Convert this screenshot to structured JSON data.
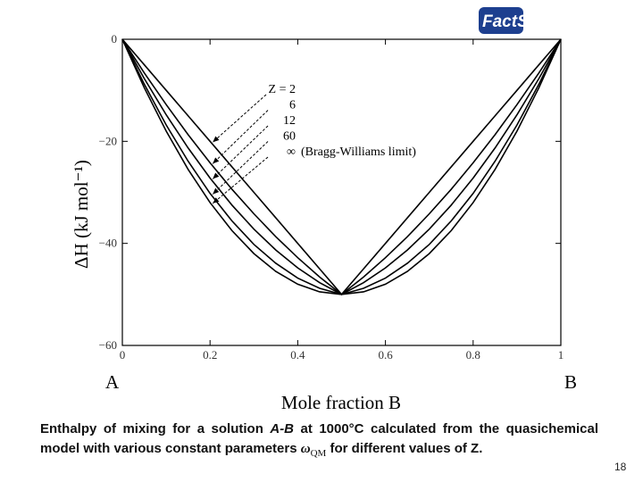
{
  "logo": "FactSage",
  "chart_data": {
    "type": "line",
    "y_label": "ΔH (kJ mol⁻¹)",
    "x_label": "Mole fraction B",
    "left_label": "A",
    "right_label": "B",
    "x": [
      0,
      0.05,
      0.1,
      0.15,
      0.2,
      0.25,
      0.3,
      0.35,
      0.4,
      0.45,
      0.5,
      0.55,
      0.6,
      0.65,
      0.7,
      0.75,
      0.8,
      0.85,
      0.9,
      0.95,
      1
    ],
    "series": [
      {
        "name": "Z = 2",
        "color": "#000000",
        "values": [
          0,
          -5,
          -10,
          -15,
          -20,
          -25,
          -30,
          -35,
          -40,
          -45,
          -50,
          -45,
          -40,
          -35,
          -30,
          -25,
          -20,
          -15,
          -10,
          -5,
          0
        ]
      },
      {
        "name": "6",
        "color": "#000000",
        "values": [
          0,
          -6.6,
          -12.8,
          -18.7,
          -24.2,
          -29.4,
          -34.2,
          -38.7,
          -42.8,
          -46.6,
          -50,
          -46.6,
          -42.8,
          -38.7,
          -34.2,
          -29.4,
          -24.2,
          -18.7,
          -12.8,
          -6.6,
          0
        ]
      },
      {
        "name": "12",
        "color": "#000000",
        "values": [
          0,
          -7.7,
          -14.8,
          -21.3,
          -27.2,
          -32.5,
          -37.2,
          -41.3,
          -44.8,
          -47.7,
          -50,
          -47.7,
          -44.8,
          -41.3,
          -37.2,
          -32.5,
          -27.2,
          -21.3,
          -14.8,
          -7.7,
          0
        ]
      },
      {
        "name": "60",
        "color": "#000000",
        "values": [
          0,
          -8.8,
          -16.8,
          -23.9,
          -30.2,
          -35.6,
          -40.2,
          -43.9,
          -46.8,
          -48.8,
          -50,
          -48.8,
          -46.8,
          -43.9,
          -40.2,
          -35.6,
          -30.2,
          -23.9,
          -16.8,
          -8.8,
          0
        ]
      },
      {
        "name": "∞",
        "color": "#000000",
        "values": [
          0,
          -9.5,
          -18,
          -25.5,
          -32,
          -37.5,
          -42,
          -45.5,
          -48,
          -49.5,
          -50,
          -49.5,
          -48,
          -45.5,
          -42,
          -37.5,
          -32,
          -25.5,
          -18,
          -9.5,
          0
        ]
      }
    ],
    "annotation": "(Bragg-Williams limit)",
    "xlim": [
      0,
      1
    ],
    "xticks": [
      0,
      0.2,
      0.4,
      0.6,
      0.8,
      1
    ],
    "ylim": [
      -60,
      0
    ],
    "yticks": [
      {
        "value": 0,
        "label": "0"
      },
      {
        "value": -20,
        "label": "−20"
      },
      {
        "value": -40,
        "label": "−40"
      },
      {
        "value": -60,
        "label": "−60"
      }
    ]
  },
  "caption": {
    "before": "Enthalpy of mixing for a solution ",
    "italic": "A-B",
    "middle": " at 1000°C calculated from the quasichemical model with various constant parameters ",
    "symbol": "ω",
    "subscript": "QM",
    "after": " for different values of Z."
  },
  "page_number": "18"
}
